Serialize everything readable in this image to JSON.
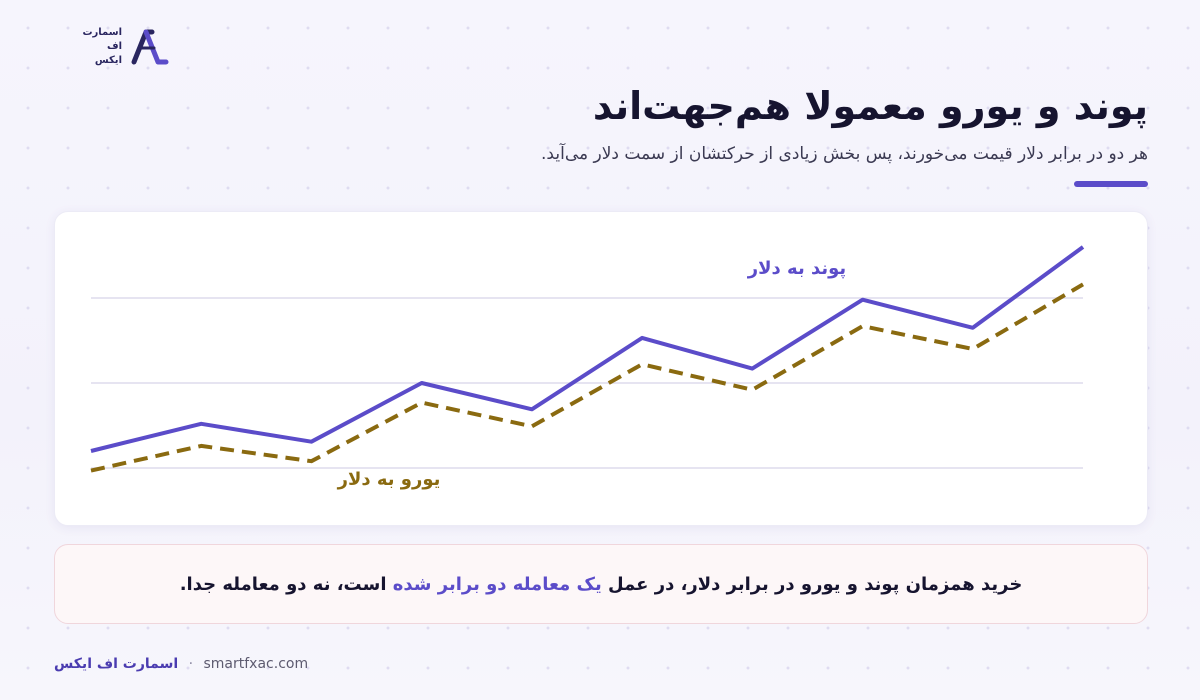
{
  "brand": {
    "logo_lines": [
      "اسمارت",
      "اف",
      "ایکس"
    ],
    "footer_name": "اسمارت اف ایکس",
    "footer_separator": "·",
    "footer_url": "smartfxac.com"
  },
  "colors": {
    "accent": "#5b4cc9",
    "gbp_line": "#5b4cc9",
    "eur_line": "#8a6a10",
    "eur_label": "#8a6a10"
  },
  "header": {
    "title": "پوند و یورو معمولا هم‌جهت‌اند",
    "subtitle": "هر دو در برابر دلار قیمت می‌خورند، پس بخش زیادی از حرکتشان از سمت دلار می‌آید."
  },
  "note": {
    "part1": "خرید همزمان پوند و یورو در برابر دلار، در عمل",
    "highlight": "یک معامله دو برابر شده",
    "part2": "است، نه دو معامله جدا."
  },
  "chart_data": {
    "type": "line",
    "x": [
      0,
      1,
      2,
      3,
      4,
      5,
      6,
      7,
      8,
      9
    ],
    "series": [
      {
        "name": "پوند به دلار",
        "values": [
          1.0,
          2.6,
          1.55,
          5.0,
          3.45,
          7.65,
          5.85,
          9.9,
          8.25,
          13.0
        ],
        "style": "solid"
      },
      {
        "name": "یورو به دلار",
        "values": [
          -0.15,
          1.3,
          0.4,
          3.85,
          2.45,
          6.1,
          4.6,
          8.35,
          7.0,
          10.8
        ],
        "style": "dashed"
      }
    ],
    "ylim": [
      -2,
      14
    ],
    "grid": true,
    "axes_visible": false,
    "title": "",
    "xlabel": "",
    "ylabel": ""
  }
}
